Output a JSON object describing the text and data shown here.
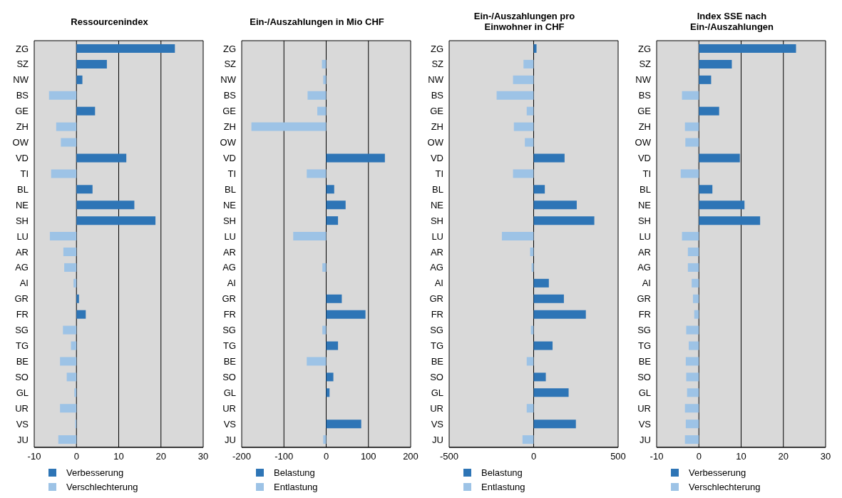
{
  "chart_data": [
    {
      "type": "bar",
      "title": "Ressourcenindex",
      "orientation": "horizontal",
      "stacked": true,
      "grid": "x",
      "legend": "bottom",
      "categories": [
        "ZG",
        "SZ",
        "NW",
        "BS",
        "GE",
        "ZH",
        "OW",
        "VD",
        "TI",
        "BL",
        "NE",
        "SH",
        "LU",
        "AR",
        "AG",
        "AI",
        "GR",
        "FR",
        "SG",
        "TG",
        "BE",
        "SO",
        "GL",
        "UR",
        "VS",
        "JU"
      ],
      "xlim": [
        -10,
        30
      ],
      "xticks": [
        -10,
        0,
        10,
        20,
        30
      ],
      "series": [
        {
          "name": "Verbesserung",
          "color": "#2e75b6",
          "values": [
            23.3,
            7.2,
            1.4,
            null,
            4.4,
            null,
            null,
            11.8,
            null,
            3.8,
            13.7,
            18.7,
            null,
            null,
            null,
            null,
            0.6,
            2.2,
            null,
            null,
            null,
            null,
            null,
            null,
            null,
            null
          ]
        },
        {
          "name": "Verschlechterung",
          "color": "#9dc3e6",
          "values": [
            null,
            null,
            null,
            -6.5,
            null,
            -4.8,
            -3.7,
            null,
            -6.0,
            null,
            null,
            null,
            -6.3,
            -3.1,
            -2.9,
            -0.7,
            null,
            null,
            -3.2,
            -1.3,
            -3.9,
            -2.3,
            -0.5,
            -3.9,
            -0.3,
            -4.3
          ]
        }
      ]
    },
    {
      "type": "bar",
      "title": "Ein-/Auszahlungen in Mio CHF",
      "orientation": "horizontal",
      "stacked": true,
      "grid": "x",
      "legend": "bottom",
      "categories": [
        "ZG",
        "SZ",
        "NW",
        "BS",
        "GE",
        "ZH",
        "OW",
        "VD",
        "TI",
        "BL",
        "NE",
        "SH",
        "LU",
        "AR",
        "AG",
        "AI",
        "GR",
        "FR",
        "SG",
        "TG",
        "BE",
        "SO",
        "GL",
        "UR",
        "VS",
        "JU"
      ],
      "xlim": [
        -200,
        200
      ],
      "xticks": [
        -200,
        -100,
        0,
        100,
        200
      ],
      "series": [
        {
          "name": "Belastung",
          "color": "#2e75b6",
          "values": [
            null,
            null,
            null,
            null,
            null,
            null,
            null,
            139,
            null,
            19,
            46,
            28,
            null,
            null,
            null,
            null,
            37,
            93,
            null,
            28,
            null,
            17,
            8,
            null,
            83,
            null
          ]
        },
        {
          "name": "Entlastung",
          "color": "#9dc3e6",
          "values": [
            null,
            -10,
            -7,
            -44,
            -21,
            -177,
            null,
            null,
            -46,
            null,
            null,
            null,
            -78,
            null,
            -9,
            null,
            null,
            null,
            -9,
            null,
            -46,
            null,
            null,
            null,
            null,
            -7
          ]
        }
      ]
    },
    {
      "type": "bar",
      "title": "Ein-/Auszahlungen pro Einwohner in CHF",
      "orientation": "horizontal",
      "stacked": true,
      "grid": "x",
      "legend": "bottom",
      "categories": [
        "ZG",
        "SZ",
        "NW",
        "BS",
        "GE",
        "ZH",
        "OW",
        "VD",
        "TI",
        "BL",
        "NE",
        "SH",
        "LU",
        "AR",
        "AG",
        "AI",
        "GR",
        "FR",
        "SG",
        "TG",
        "BE",
        "SO",
        "GL",
        "UR",
        "VS",
        "JU"
      ],
      "xlim": [
        -500,
        500
      ],
      "xticks": [
        -500,
        0,
        500
      ],
      "series": [
        {
          "name": "Belastung",
          "color": "#2e75b6",
          "values": [
            17,
            null,
            null,
            null,
            null,
            null,
            null,
            183,
            null,
            66,
            255,
            359,
            null,
            null,
            null,
            90,
            179,
            309,
            null,
            112,
            null,
            72,
            207,
            null,
            250,
            null
          ]
        },
        {
          "name": "Entlastung",
          "color": "#9dc3e6",
          "values": [
            null,
            -60,
            -122,
            -219,
            -41,
            -117,
            -52,
            null,
            -122,
            null,
            null,
            null,
            -188,
            -21,
            -12,
            null,
            null,
            null,
            -16,
            null,
            -41,
            null,
            null,
            -41,
            null,
            -66
          ]
        }
      ]
    },
    {
      "type": "bar",
      "title": "Index SSE nach Ein-/Auszahlungen",
      "orientation": "horizontal",
      "stacked": true,
      "grid": "x",
      "legend": "bottom",
      "categories": [
        "ZG",
        "SZ",
        "NW",
        "BS",
        "GE",
        "ZH",
        "OW",
        "VD",
        "TI",
        "BL",
        "NE",
        "SH",
        "LU",
        "AR",
        "AG",
        "AI",
        "GR",
        "FR",
        "SG",
        "TG",
        "BE",
        "SO",
        "GL",
        "UR",
        "VS",
        "JU"
      ],
      "xlim": [
        -10,
        30
      ],
      "xticks": [
        -10,
        0,
        10,
        20,
        30
      ],
      "series": [
        {
          "name": "Verbesserung",
          "color": "#2e75b6",
          "values": [
            23.0,
            7.8,
            2.9,
            null,
            4.8,
            null,
            null,
            9.7,
            null,
            3.2,
            10.8,
            14.5,
            null,
            null,
            null,
            null,
            null,
            null,
            null,
            null,
            null,
            null,
            null,
            null,
            null,
            null
          ]
        },
        {
          "name": "Verschlechterung",
          "color": "#9dc3e6",
          "values": [
            null,
            null,
            null,
            -4.0,
            null,
            -3.3,
            -3.2,
            null,
            -4.3,
            null,
            null,
            null,
            -4.0,
            -2.6,
            -2.6,
            -1.7,
            -1.4,
            -1.1,
            -3.0,
            -2.4,
            -3.1,
            -3.0,
            -2.8,
            -3.3,
            -3.1,
            -3.3
          ]
        }
      ]
    }
  ]
}
